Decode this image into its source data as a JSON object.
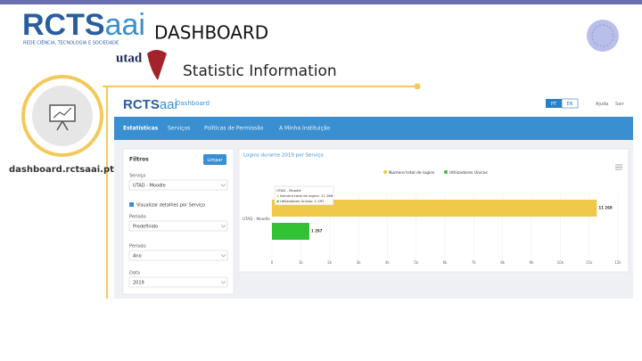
{
  "slide": {
    "logo": "RCTS",
    "logo_suffix": "aai",
    "logo_subtitle": "REDE CIÊNCIA, TECNOLOGIA E SOCIEDADE",
    "title": "DASHBOARD",
    "partner": "utad",
    "subtitle": "Statistic Information",
    "url": "dashboard.rctsaai.pt"
  },
  "dashboard": {
    "logo": "RCTS",
    "logo_suffix": "aai",
    "header": "Dashboard",
    "languages": [
      "PT",
      "EN"
    ],
    "links": [
      "Ajuda",
      "Sair"
    ],
    "nav": [
      "Estatísticas",
      "Serviços",
      "Políticas de Permissão",
      "A Minha Instituição"
    ],
    "filters": {
      "title": "Filtros",
      "clear": "Limpar",
      "fields": [
        {
          "label": "Serviço",
          "value": "UTAD - Moodle"
        },
        {
          "label": "Período",
          "value": "Predefinido"
        },
        {
          "label": "Período",
          "value": "Ano"
        },
        {
          "label": "Data",
          "value": "2019"
        }
      ],
      "checkbox": "Visualizar detalhes por Serviço"
    },
    "tooltip": [
      "UTAD - Moodle",
      "Número total de logins: 11 268",
      "Utilizadores Únicos: 1 297"
    ]
  },
  "chart_data": {
    "type": "hbar",
    "title": "Logins durante 2019 por Serviço",
    "categories": [
      "UTAD - Moodle"
    ],
    "series": [
      {
        "name": "Número total de logins",
        "color": "#f0c94a",
        "values": [
          11268
        ],
        "value_labels": [
          "11 268"
        ]
      },
      {
        "name": "Utilizadores Únicos",
        "color": "#33c233",
        "values": [
          1297
        ],
        "value_labels": [
          "1 297"
        ]
      }
    ],
    "xlim": [
      0,
      12000
    ],
    "xticks": [
      0,
      {
        "value": 1000,
        "label": "1k"
      },
      {
        "value": 2000,
        "label": "2k"
      },
      {
        "value": 3000,
        "label": "3k"
      },
      {
        "value": 4000,
        "label": "4k"
      },
      {
        "value": 5000,
        "label": "5k"
      },
      {
        "value": 6000,
        "label": "6k"
      },
      {
        "value": 7000,
        "label": "7k"
      },
      {
        "value": 8000,
        "label": "8k"
      },
      {
        "value": 9000,
        "label": "9k"
      },
      {
        "value": 10000,
        "label": "10k"
      },
      {
        "value": 11000,
        "label": "11k"
      },
      {
        "value": 12000,
        "label": "12k"
      }
    ],
    "legend": "top-right"
  }
}
